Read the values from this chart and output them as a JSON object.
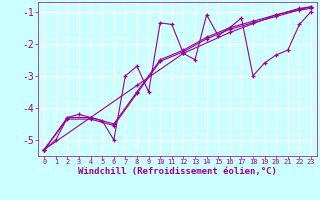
{
  "background_color": "#ccffff",
  "grid_color": "#ffffff",
  "line_color": "#990099",
  "xlabel": "Windchill (Refroidissement éolien,°C)",
  "xlabel_color": "#990099",
  "tick_color": "#990099",
  "ylim": [
    -5.5,
    -0.7
  ],
  "xlim": [
    -0.5,
    23.5
  ],
  "yticks": [
    -5,
    -4,
    -3,
    -2,
    -1
  ],
  "xticks": [
    0,
    1,
    2,
    3,
    4,
    5,
    6,
    7,
    8,
    9,
    10,
    11,
    12,
    13,
    14,
    15,
    16,
    17,
    18,
    19,
    20,
    21,
    22,
    23
  ],
  "lines": [
    [
      0,
      -5.3,
      1,
      -5.0,
      2,
      -4.3,
      3,
      -4.2,
      4,
      -4.3,
      5,
      -4.4,
      6,
      -5.0,
      7,
      -3.0,
      8,
      -2.7,
      9,
      -3.5,
      10,
      -1.35,
      11,
      -1.4,
      12,
      -2.3,
      13,
      -2.5,
      14,
      -1.1,
      15,
      -1.75,
      16,
      -1.5,
      17,
      -1.2,
      18,
      -3.0,
      19,
      -2.6,
      20,
      -2.35,
      21,
      -2.2,
      22,
      -1.4,
      23,
      -1.0
    ],
    [
      0,
      -5.3,
      2,
      -4.3,
      4,
      -4.3,
      6,
      -4.5,
      8,
      -3.5,
      10,
      -2.5,
      12,
      -2.2,
      14,
      -1.8,
      16,
      -1.5,
      18,
      -1.3,
      20,
      -1.1,
      22,
      -0.9,
      23,
      -0.85
    ],
    [
      0,
      -5.3,
      2,
      -4.35,
      4,
      -4.35,
      6,
      -4.55,
      8,
      -3.55,
      10,
      -2.55,
      12,
      -2.25,
      14,
      -1.85,
      16,
      -1.55,
      18,
      -1.35,
      20,
      -1.15,
      22,
      -0.95,
      23,
      -0.9
    ],
    [
      0,
      -5.3,
      4,
      -4.3,
      8,
      -3.3,
      12,
      -2.3,
      16,
      -1.65,
      20,
      -1.1,
      23,
      -0.85
    ]
  ],
  "figsize": [
    3.2,
    2.0
  ],
  "dpi": 100,
  "xlabel_fontsize": 6.5,
  "ytick_fontsize": 7,
  "xtick_fontsize": 5
}
